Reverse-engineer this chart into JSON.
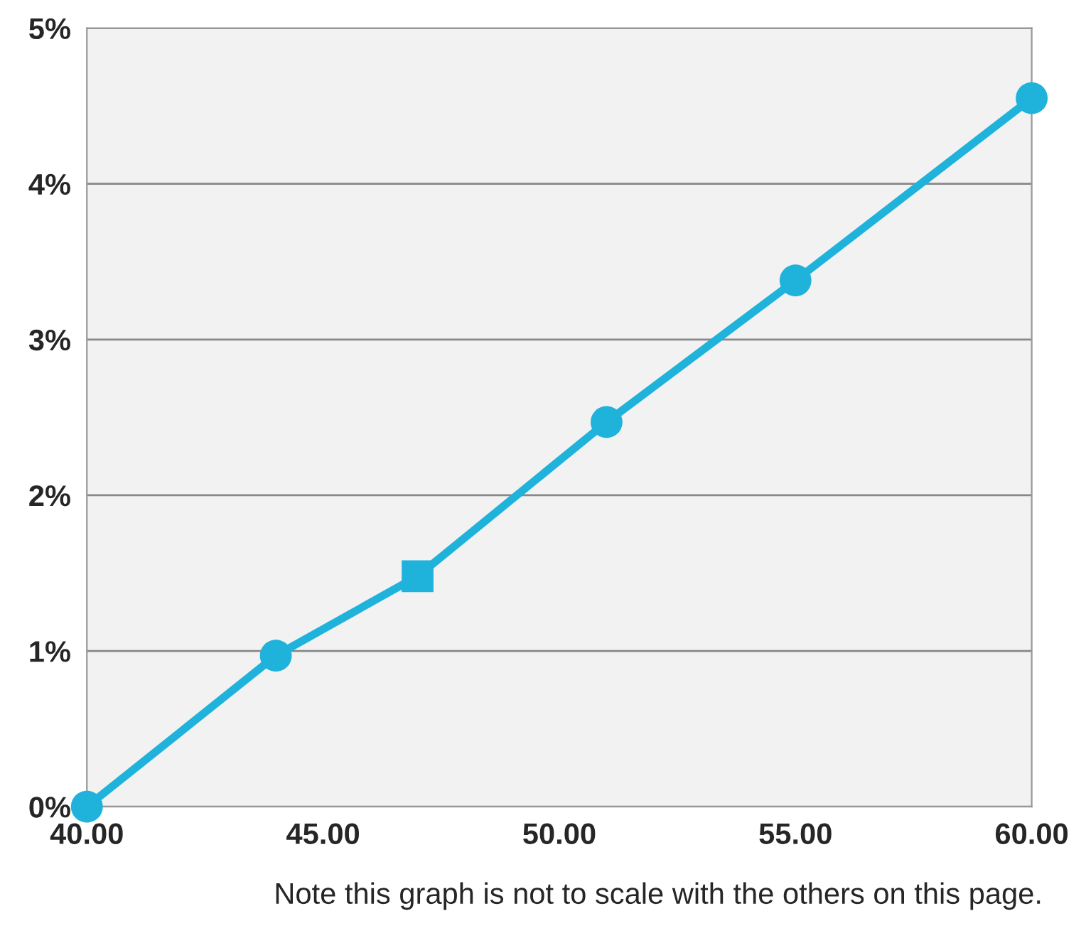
{
  "chart_data": {
    "type": "line",
    "x": [
      40,
      44,
      47,
      51,
      55,
      60
    ],
    "series": [
      {
        "color": "#1fb3dc",
        "marker": "none",
        "values": [
          0,
          0.97,
          1.48,
          2.47,
          3.38,
          4.55
        ]
      },
      {
        "type": "scatter",
        "color": "#1fb3dc",
        "marker": "circle",
        "x": [
          40,
          44,
          51,
          55,
          60
        ],
        "values": [
          0,
          0.97,
          2.47,
          3.38,
          4.55
        ]
      },
      {
        "type": "scatter",
        "color": "#1fb3dc",
        "marker": "square",
        "x": [
          47
        ],
        "values": [
          1.48
        ]
      }
    ],
    "xlim": [
      40,
      60
    ],
    "xticks": [
      {
        "value": 40,
        "label": "40.00"
      },
      {
        "value": 45,
        "label": "45.00"
      },
      {
        "value": 50,
        "label": "50.00"
      },
      {
        "value": 55,
        "label": "55.00"
      },
      {
        "value": 60,
        "label": "60.00"
      }
    ],
    "ylim": [
      0,
      5
    ],
    "yticks": [
      {
        "value": 0,
        "label": "0%"
      },
      {
        "value": 1,
        "label": "1%"
      },
      {
        "value": 2,
        "label": "2%"
      },
      {
        "value": 3,
        "label": "3%"
      },
      {
        "value": 4,
        "label": "4%"
      },
      {
        "value": 5,
        "label": "5%"
      }
    ],
    "grid": "y",
    "annotations": [
      "Note this graph is not to scale with the others on this page."
    ]
  }
}
